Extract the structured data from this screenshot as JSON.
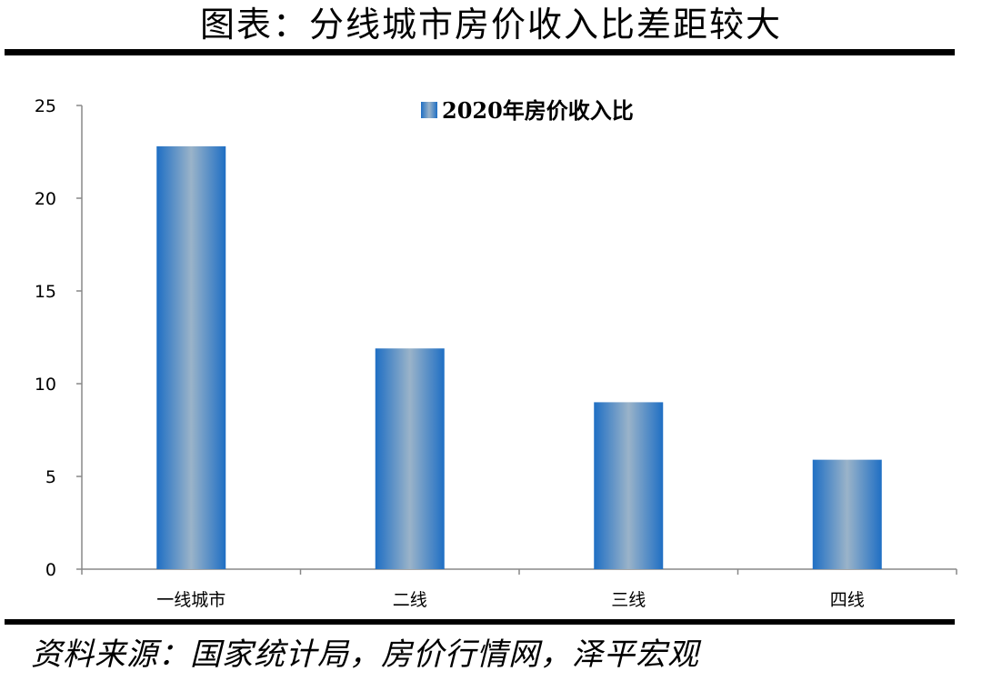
{
  "header": {
    "title": "图表：分线城市房价收入比差距较大"
  },
  "footer": {
    "source": "资料来源：国家统计局，房价行情网，泽平宏观"
  },
  "chart_data": {
    "type": "bar",
    "categories": [
      "一线城市",
      "二线",
      "三线",
      "四线"
    ],
    "series": [
      {
        "name": "2020年房价收入比",
        "values": [
          22.8,
          11.9,
          9.0,
          5.9
        ]
      }
    ],
    "ylim": [
      0,
      25
    ],
    "yticks": [
      "0",
      "5",
      "10",
      "15",
      "20",
      "25"
    ],
    "legend_position": "top-center",
    "grid": false,
    "colors": {
      "bar_edge": "#1f6fc4",
      "bar_center": "#9ab3c9",
      "axis": "#888888"
    }
  }
}
